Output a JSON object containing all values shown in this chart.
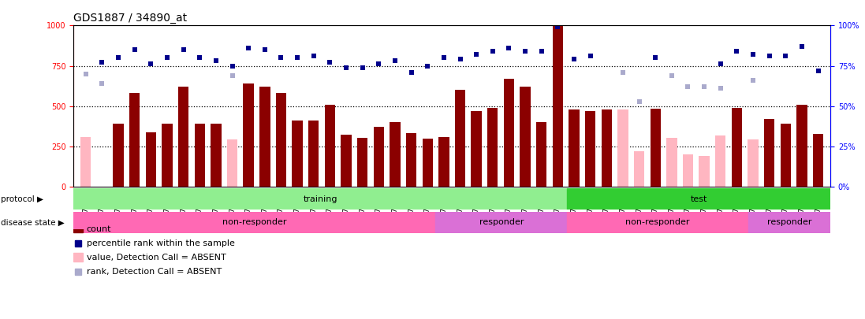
{
  "title": "GDS1887 / 34890_at",
  "samples": [
    "GSM79076",
    "GSM79077",
    "GSM79078",
    "GSM79079",
    "GSM79080",
    "GSM79081",
    "GSM79082",
    "GSM79083",
    "GSM79084",
    "GSM79085",
    "GSM79088",
    "GSM79089",
    "GSM79090",
    "GSM79091",
    "GSM79092",
    "GSM79093",
    "GSM79094",
    "GSM79095",
    "GSM79096",
    "GSM79097",
    "GSM79098",
    "GSM79099",
    "GSM79104",
    "GSM79105",
    "GSM79106",
    "GSM79107",
    "GSM79108",
    "GSM79109",
    "GSM79068",
    "GSM79069",
    "GSM79070",
    "GSM79071",
    "GSM79072",
    "GSM79075",
    "GSM79102",
    "GSM79086",
    "GSM79087",
    "GSM79100",
    "GSM79101",
    "GSM79110",
    "GSM79111",
    "GSM79112",
    "GSM79073",
    "GSM79074",
    "GSM79103",
    "GSM79113"
  ],
  "count_values": [
    0,
    0,
    390,
    580,
    335,
    390,
    620,
    390,
    390,
    0,
    640,
    620,
    580,
    410,
    410,
    510,
    320,
    305,
    370,
    400,
    330,
    300,
    310,
    600,
    470,
    490,
    670,
    620,
    400,
    1000,
    480,
    470,
    480,
    0,
    0,
    485,
    0,
    0,
    0,
    0,
    490,
    0,
    420,
    390,
    510,
    325
  ],
  "absent_value_values": [
    310,
    0,
    0,
    0,
    0,
    0,
    0,
    0,
    0,
    295,
    0,
    0,
    0,
    0,
    0,
    0,
    0,
    0,
    0,
    0,
    0,
    0,
    0,
    0,
    0,
    0,
    0,
    0,
    0,
    0,
    0,
    0,
    0,
    480,
    220,
    0,
    305,
    200,
    190,
    315,
    0,
    295,
    0,
    0,
    0,
    0
  ],
  "percentile_rank": [
    0,
    770,
    800,
    850,
    760,
    800,
    850,
    800,
    780,
    750,
    860,
    850,
    800,
    800,
    810,
    770,
    740,
    740,
    760,
    780,
    710,
    750,
    800,
    790,
    820,
    840,
    860,
    840,
    840,
    990,
    790,
    810,
    0,
    0,
    0,
    800,
    0,
    0,
    0,
    760,
    840,
    820,
    810,
    810,
    870,
    720
  ],
  "absent_rank_values": [
    700,
    640,
    0,
    0,
    0,
    0,
    0,
    0,
    0,
    690,
    0,
    0,
    0,
    0,
    0,
    0,
    0,
    0,
    0,
    0,
    0,
    0,
    0,
    0,
    0,
    0,
    0,
    0,
    0,
    0,
    0,
    0,
    0,
    710,
    530,
    0,
    690,
    620,
    620,
    610,
    0,
    660,
    0,
    0,
    0,
    0
  ],
  "protocol_groups": [
    {
      "label": "training",
      "start": 0,
      "end": 30,
      "color": "#90EE90"
    },
    {
      "label": "test",
      "start": 30,
      "end": 46,
      "color": "#32CD32"
    }
  ],
  "disease_groups": [
    {
      "label": "non-responder",
      "start": 0,
      "end": 22,
      "color": "#FF69B4"
    },
    {
      "label": "responder",
      "start": 22,
      "end": 30,
      "color": "#DA70D6"
    },
    {
      "label": "non-responder",
      "start": 30,
      "end": 41,
      "color": "#FF69B4"
    },
    {
      "label": "responder",
      "start": 41,
      "end": 46,
      "color": "#DA70D6"
    }
  ],
  "ylim": [
    0,
    1000
  ],
  "yticks_left": [
    0,
    250,
    500,
    750,
    1000
  ],
  "yticks_right_vals": [
    0,
    25,
    50,
    75,
    100
  ],
  "bar_color_dark_red": "#8B0000",
  "bar_color_pink": "#FFB6C1",
  "dot_color_blue": "#00008B",
  "dot_color_light_blue": "#AAAACC",
  "bg_color": "#FFFFFF",
  "title_fontsize": 10,
  "tick_fontsize": 6.5,
  "label_fontsize": 8
}
